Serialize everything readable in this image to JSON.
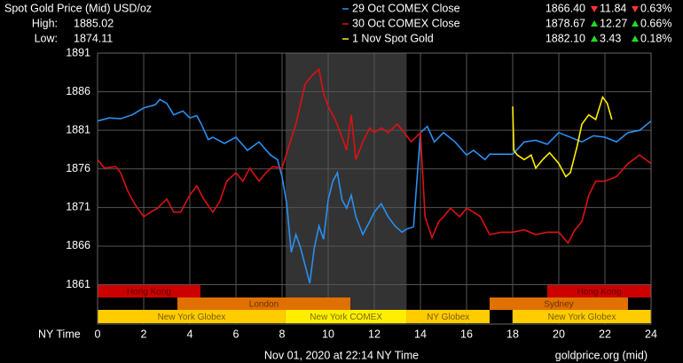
{
  "chart_data": {
    "type": "line",
    "title": "Spot Gold Price (Mid) USD/oz",
    "stats": [
      {
        "label": "High:",
        "value": "1885.02"
      },
      {
        "label": "Low:",
        "value": "1874.11"
      }
    ],
    "xlabel": "NY Time",
    "footer": "Nov 01, 2020 at 22:14 NY Time",
    "source": "goldprice.org (mid)",
    "xlim": [
      0,
      24
    ],
    "xticks": [
      0,
      2,
      4,
      6,
      8,
      10,
      12,
      14,
      16,
      18,
      20,
      22,
      24
    ],
    "ylim": [
      1855.9,
      1891
    ],
    "yticks": [
      1861,
      1866,
      1871,
      1876,
      1881,
      1886,
      1891
    ],
    "grid": true,
    "highlight": [
      8.15,
      13.4
    ],
    "sessions": [
      {
        "name": "Hong Kong",
        "start": 0,
        "end": 4.46,
        "row": 0,
        "color": "#cc0000"
      },
      {
        "name": "Hong Kong",
        "start": 19.5,
        "end": 24,
        "row": 0,
        "color": "#cc0000"
      },
      {
        "name": "London",
        "start": 3.46,
        "end": 10.96,
        "row": 1,
        "color": "#e07000"
      },
      {
        "name": "Sydney",
        "start": 17,
        "end": 23,
        "row": 1,
        "color": "#e07000"
      },
      {
        "name": "New York Globex",
        "start": 0,
        "end": 8.15,
        "row": 2,
        "color": "#ffcc00"
      },
      {
        "name": "New York COMEX",
        "start": 8.15,
        "end": 13.4,
        "row": 2,
        "color": "#ffee00"
      },
      {
        "name": "NY Globex",
        "start": 13.4,
        "end": 17,
        "row": 2,
        "color": "#ffcc00"
      },
      {
        "name": "New York Globex",
        "start": 18,
        "end": 24,
        "row": 2,
        "color": "#ffcc00"
      }
    ],
    "series": [
      {
        "name": "29 Oct COMEX Close",
        "color": "#2a8ff0",
        "close": "1866.40",
        "change": "11.84",
        "change_pct": "0.63%",
        "direction": "down",
        "x": [
          0,
          0.5,
          1,
          1.5,
          2,
          2.5,
          2.7,
          3,
          3.3,
          3.7,
          4,
          4.3,
          4.5,
          4.8,
          5,
          5.5,
          6,
          6.5,
          7,
          7.5,
          7.8,
          8,
          8.2,
          8.4,
          8.6,
          8.8,
          9,
          9.2,
          9.4,
          9.6,
          9.8,
          10,
          10.2,
          10.4,
          10.6,
          10.8,
          11,
          11.2,
          11.5,
          11.8,
          12,
          12.3,
          12.6,
          12.9,
          13.2,
          13.4,
          13.7,
          14,
          14.3,
          14.6,
          15,
          15.5,
          16,
          16.3,
          16.8,
          17,
          18,
          18.5,
          19,
          19.5,
          20,
          20.5,
          21,
          21.5,
          22,
          22.5,
          23,
          23.5,
          24
        ],
        "values": [
          1882.2,
          1882.6,
          1882.5,
          1883,
          1883.9,
          1884.3,
          1885,
          1884.5,
          1883,
          1883.5,
          1882.6,
          1882.9,
          1881.8,
          1879.8,
          1880.1,
          1879.3,
          1880.1,
          1878.4,
          1879.5,
          1877.8,
          1877.2,
          1875,
          1871.5,
          1865.2,
          1867.5,
          1865.8,
          1863.5,
          1861.2,
          1865.8,
          1868.6,
          1866.9,
          1872,
          1874.4,
          1875.5,
          1872,
          1870.9,
          1872.6,
          1869.8,
          1867.5,
          1869.2,
          1870.4,
          1871.5,
          1869.8,
          1868.6,
          1867.8,
          1868.2,
          1868.5,
          1880.7,
          1881.5,
          1879.5,
          1880.7,
          1879.5,
          1877.8,
          1878.4,
          1877.2,
          1877.9,
          1877.9,
          1879.5,
          1879.7,
          1879.2,
          1880.7,
          1880.1,
          1879.5,
          1880.3,
          1880.1,
          1879.5,
          1880.7,
          1881,
          1882.2
        ]
      },
      {
        "name": "30 Oct COMEX Close",
        "color": "#dd1111",
        "close": "1878.67",
        "change": "12.27",
        "change_pct": "0.66%",
        "direction": "up",
        "x": [
          0,
          0.3,
          0.8,
          1,
          1.3,
          1.6,
          2,
          2.3,
          2.6,
          3,
          3.3,
          3.6,
          4,
          4.3,
          4.6,
          5,
          5.3,
          5.6,
          6,
          6.3,
          6.6,
          7,
          7.3,
          7.6,
          8,
          8.3,
          8.6,
          9,
          9.3,
          9.6,
          9.8,
          10,
          10.3,
          10.6,
          10.8,
          11,
          11.2,
          11.5,
          11.8,
          12,
          12.3,
          12.6,
          13,
          13.3,
          13.6,
          14,
          14.2,
          14.5,
          14.8,
          15,
          15.3,
          15.7,
          16,
          16.3,
          16.6,
          17,
          17.5,
          18,
          18.5,
          19,
          19.5,
          20,
          20.4,
          20.7,
          21,
          21.3,
          21.6,
          22,
          22.5,
          23,
          23.5,
          24
        ],
        "values": [
          1877.2,
          1876.1,
          1876.3,
          1875.5,
          1873.2,
          1871.5,
          1869.8,
          1870.4,
          1870.9,
          1872.1,
          1870.4,
          1870.4,
          1872.6,
          1873.8,
          1872.1,
          1870.4,
          1871.8,
          1874.4,
          1875.5,
          1874.4,
          1876.1,
          1874.4,
          1875.5,
          1876.3,
          1876.1,
          1879,
          1881.8,
          1887,
          1888.1,
          1888.9,
          1885.8,
          1884.1,
          1882.4,
          1880.1,
          1878.4,
          1883,
          1877.2,
          1879.5,
          1881.3,
          1880.7,
          1881.3,
          1880.7,
          1881.8,
          1880.7,
          1879.5,
          1880.7,
          1869.8,
          1867.1,
          1869.2,
          1869.8,
          1870.9,
          1869.8,
          1870.9,
          1870.4,
          1869.8,
          1867.5,
          1867.8,
          1867.8,
          1868.1,
          1867.5,
          1867.8,
          1867.8,
          1866.4,
          1868.1,
          1869.2,
          1872.6,
          1874.4,
          1874.4,
          1875,
          1876.7,
          1877.8,
          1876.7
        ]
      },
      {
        "name": "1 Nov Spot Gold",
        "color": "#ffee00",
        "close": "1882.10",
        "change": "3.43",
        "change_pct": "0.18%",
        "direction": "up",
        "x": [
          18,
          18.05,
          18.2,
          18.5,
          18.8,
          19,
          19.3,
          19.6,
          20,
          20.3,
          20.5,
          20.8,
          21,
          21.3,
          21.6,
          21.9,
          22.1,
          22.3
        ],
        "values": [
          1884.1,
          1878.4,
          1877.8,
          1877.2,
          1877.8,
          1876.1,
          1877.2,
          1878.1,
          1876.7,
          1875,
          1875.5,
          1879,
          1881.8,
          1883,
          1882.4,
          1885.3,
          1884.5,
          1882.4
        ]
      }
    ]
  }
}
